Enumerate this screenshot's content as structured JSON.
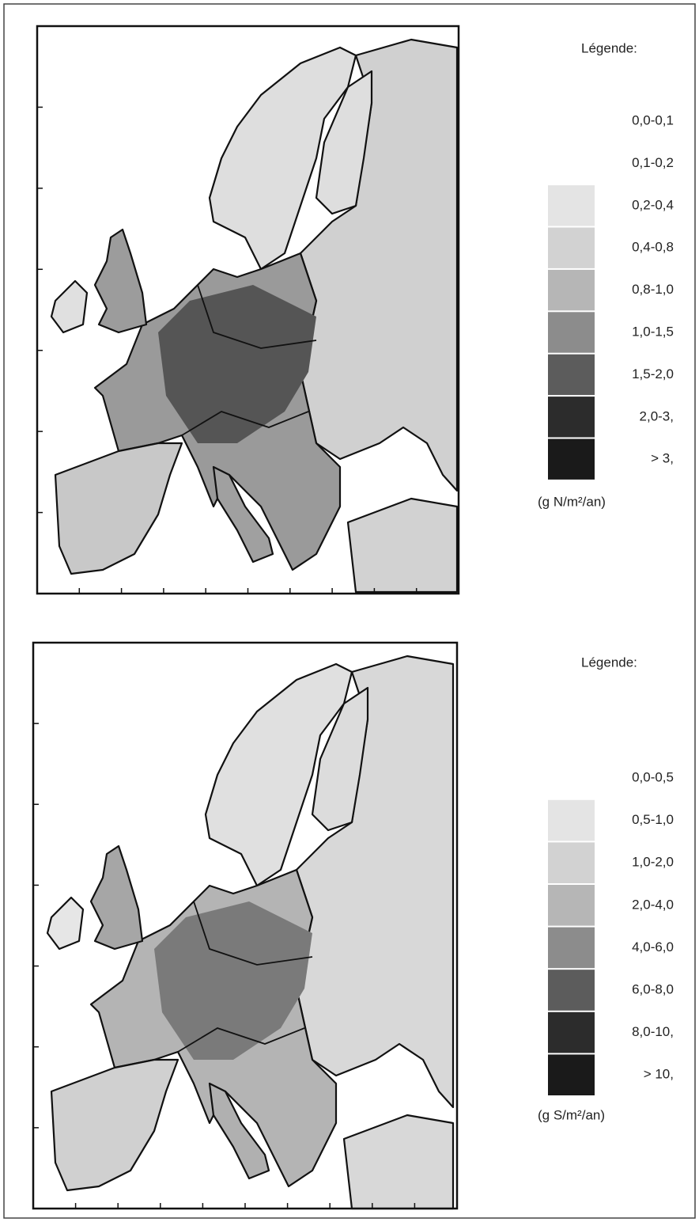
{
  "maps": [
    {
      "legend": {
        "title": "Légende:",
        "unit": "(g N/m²/an)",
        "classes": [
          {
            "label": "0,0-0,1",
            "color": "#ffffff"
          },
          {
            "label": "0,1-0,2",
            "color": "#ffffff"
          },
          {
            "label": "0,2-0,4",
            "color": "#e4e4e4"
          },
          {
            "label": "0,4-0,8",
            "color": "#d2d2d2"
          },
          {
            "label": "0,8-1,0",
            "color": "#b6b6b6"
          },
          {
            "label": "1,0-1,5",
            "color": "#8c8c8c"
          },
          {
            "label": "1,5-2,0",
            "color": "#5c5c5c"
          },
          {
            "label": "2,0-3,",
            "color": "#2c2c2c"
          },
          {
            "label": "> 3,",
            "color": "#1a1a1a"
          }
        ]
      }
    },
    {
      "legend": {
        "title": "Légende:",
        "unit": "(g S/m²/an)",
        "classes": [
          {
            "label": "0,0-0,5",
            "color": "#ffffff"
          },
          {
            "label": "0,5-1,0",
            "color": "#e4e4e4"
          },
          {
            "label": "1,0-2,0",
            "color": "#d2d2d2"
          },
          {
            "label": "2,0-4,0",
            "color": "#b6b6b6"
          },
          {
            "label": "4,0-6,0",
            "color": "#8c8c8c"
          },
          {
            "label": "6,0-8,0",
            "color": "#5c5c5c"
          },
          {
            "label": "8,0-10,",
            "color": "#2c2c2c"
          },
          {
            "label": "> 10,",
            "color": "#1a1a1a"
          }
        ]
      }
    }
  ]
}
